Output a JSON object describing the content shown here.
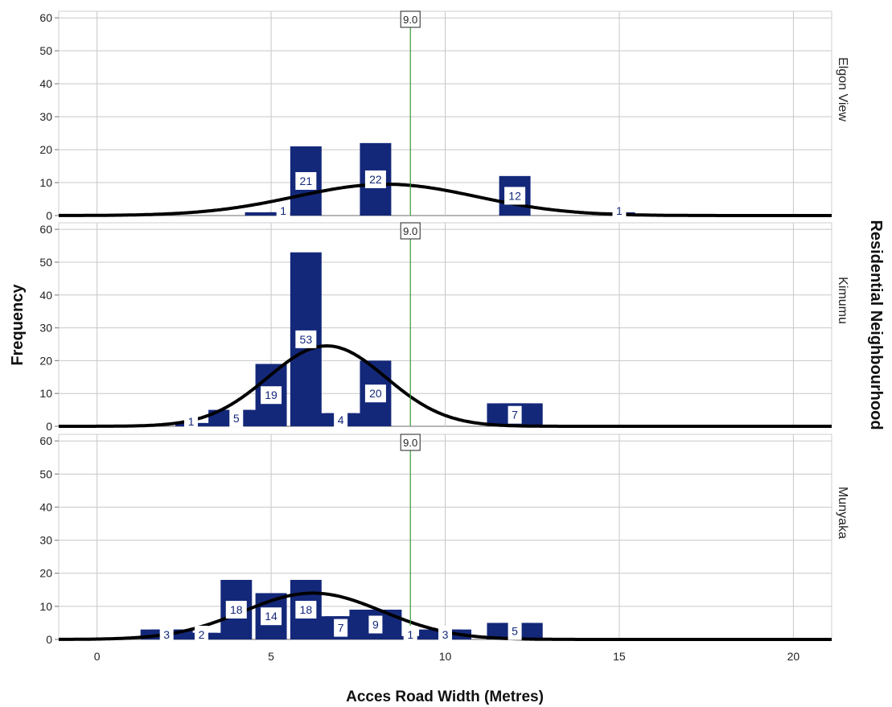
{
  "chart_data": {
    "type": "bar",
    "subtype": "faceted histogram with normal curve",
    "xlabel": "Acces Road Width (Metres)",
    "ylabel": "Frequency",
    "facet_title": "Residential Neighbourhood",
    "xlim": [
      -1.1,
      21.1
    ],
    "ylim": [
      0,
      62
    ],
    "x_ticks": [
      0,
      5,
      10,
      15,
      20
    ],
    "y_ticks": [
      0,
      10,
      20,
      30,
      40,
      50,
      60
    ],
    "grid": true,
    "bin_width": 0.9,
    "reference_line": {
      "x": 9.0,
      "label": "9.0"
    },
    "colors": {
      "bars": "#14287a",
      "curve": "#000000",
      "reference_line": "#3a9a3a",
      "grid": "#c8c8c8"
    },
    "panels": [
      {
        "name": "Elgon View",
        "normal_curve": {
          "mean": 8.3,
          "sd": 2.6,
          "peak": 9.5
        },
        "bars": [
          {
            "x": 4.7,
            "value": 1
          },
          {
            "x": 5.35,
            "value": 1,
            "label": "1"
          },
          {
            "x": 6.0,
            "value": 21,
            "label": "21"
          },
          {
            "x": 8.0,
            "value": 22,
            "label": "22"
          },
          {
            "x": 12.0,
            "value": 12,
            "label": "12"
          },
          {
            "x": 15.0,
            "value": 1,
            "label": "1"
          }
        ]
      },
      {
        "name": "Kimumu",
        "normal_curve": {
          "mean": 6.6,
          "sd": 1.7,
          "peak": 24.5
        },
        "bars": [
          {
            "x": 2.7,
            "value": 1,
            "label": "1"
          },
          {
            "x": 3.3,
            "value": 1
          },
          {
            "x": 3.65,
            "value": 5
          },
          {
            "x": 4.0,
            "value": 5,
            "label": "5"
          },
          {
            "x": 4.35,
            "value": 5
          },
          {
            "x": 5.0,
            "value": 19,
            "label": "19"
          },
          {
            "x": 6.0,
            "value": 53,
            "label": "53"
          },
          {
            "x": 6.65,
            "value": 4
          },
          {
            "x": 7.0,
            "value": 4,
            "label": "4"
          },
          {
            "x": 7.35,
            "value": 4
          },
          {
            "x": 8.0,
            "value": 20,
            "label": "20"
          },
          {
            "x": 11.65,
            "value": 7
          },
          {
            "x": 12.0,
            "value": 7,
            "label": "7"
          },
          {
            "x": 12.35,
            "value": 7
          }
        ]
      },
      {
        "name": "Munyaka",
        "normal_curve": {
          "mean": 6.2,
          "sd": 2.0,
          "peak": 14
        },
        "bars": [
          {
            "x": 1.7,
            "value": 3
          },
          {
            "x": 2.0,
            "value": 3,
            "label": "3"
          },
          {
            "x": 2.3,
            "value": 3
          },
          {
            "x": 2.65,
            "value": 2
          },
          {
            "x": 3.0,
            "value": 2,
            "label": "2"
          },
          {
            "x": 3.35,
            "value": 2
          },
          {
            "x": 4.0,
            "value": 18,
            "label": "18"
          },
          {
            "x": 5.0,
            "value": 14,
            "label": "14"
          },
          {
            "x": 6.0,
            "value": 18,
            "label": "18"
          },
          {
            "x": 6.65,
            "value": 7
          },
          {
            "x": 7.0,
            "value": 7,
            "label": "7"
          },
          {
            "x": 7.35,
            "value": 7
          },
          {
            "x": 7.7,
            "value": 9
          },
          {
            "x": 8.0,
            "value": 9,
            "label": "9"
          },
          {
            "x": 8.3,
            "value": 9
          },
          {
            "x": 8.65,
            "value": 1
          },
          {
            "x": 9.0,
            "value": 1,
            "label": "1"
          },
          {
            "x": 9.35,
            "value": 1
          },
          {
            "x": 9.7,
            "value": 3
          },
          {
            "x": 10.0,
            "value": 3,
            "label": "3"
          },
          {
            "x": 10.3,
            "value": 3
          },
          {
            "x": 11.65,
            "value": 5
          },
          {
            "x": 12.0,
            "value": 5,
            "label": "5"
          },
          {
            "x": 12.35,
            "value": 5
          }
        ]
      }
    ]
  }
}
